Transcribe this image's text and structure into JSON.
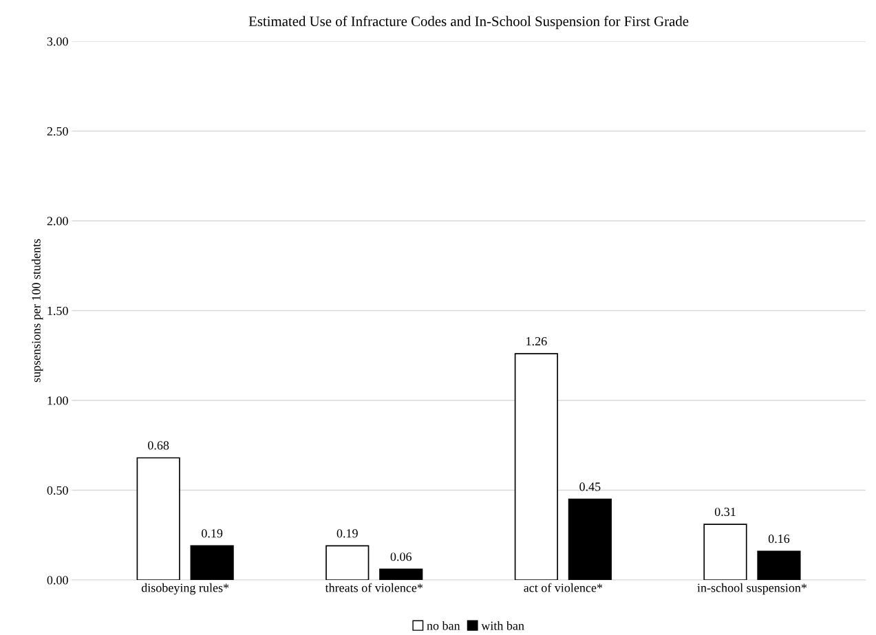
{
  "chart_data": {
    "type": "bar",
    "title": "Estimated Use of Infracture Codes and In-School Suspension for First Grade",
    "ylabel": "supsensions per 100 students",
    "categories": [
      "disobeying rules*",
      "threats of violence*",
      "act of violence*",
      "in-school suspension*"
    ],
    "series": [
      {
        "name": "no ban",
        "color": "#ffffff",
        "values": [
          0.68,
          0.19,
          1.26,
          0.31
        ]
      },
      {
        "name": "with ban",
        "color": "#000000",
        "values": [
          0.19,
          0.06,
          0.45,
          0.16
        ]
      }
    ],
    "ylim": [
      0,
      3
    ],
    "yticks": [
      {
        "value": 0,
        "label": "0.00"
      },
      {
        "value": 0.5,
        "label": "0.50"
      },
      {
        "value": 1,
        "label": "1.00"
      },
      {
        "value": 1.5,
        "label": "1.50"
      },
      {
        "value": 2,
        "label": "2.00"
      },
      {
        "value": 2.5,
        "label": "2.50"
      },
      {
        "value": 3,
        "label": "3.00"
      }
    ],
    "grid": "y",
    "legend": "bottom",
    "data_labels": true
  }
}
